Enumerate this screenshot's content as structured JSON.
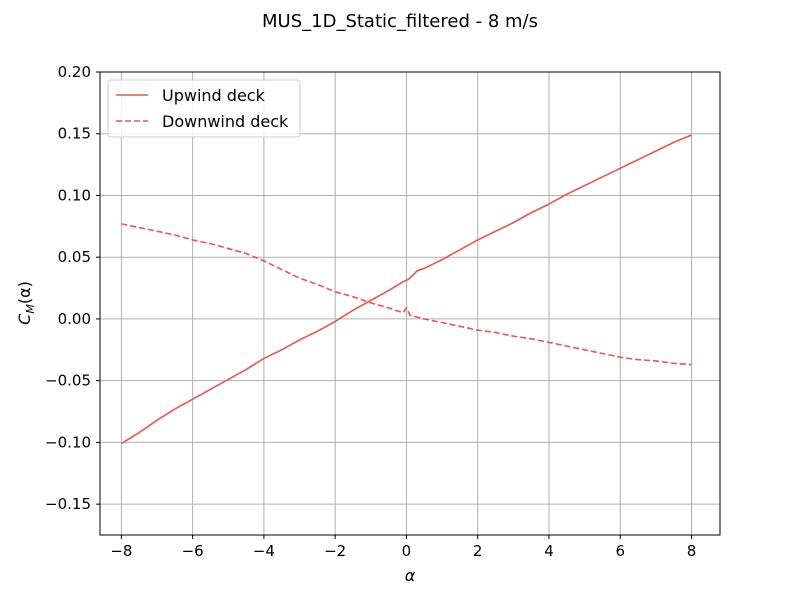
{
  "chart_data": {
    "type": "line",
    "title": "MUS_1D_Static_filtered - 8 m/s",
    "xlabel": "α",
    "ylabel_main": "C",
    "ylabel_sub": "M",
    "ylabel_tail": "(α)",
    "xlim": [
      -8.6,
      8.8
    ],
    "ylim": [
      -0.175,
      0.2
    ],
    "xticks": [
      -8,
      -6,
      -4,
      -2,
      0,
      2,
      4,
      6,
      8
    ],
    "xtick_labels": [
      "−8",
      "−6",
      "−4",
      "−2",
      "0",
      "2",
      "4",
      "6",
      "8"
    ],
    "yticks": [
      -0.15,
      -0.1,
      -0.05,
      0.0,
      0.05,
      0.1,
      0.15,
      0.2
    ],
    "ytick_labels": [
      "−0.15",
      "−0.10",
      "−0.05",
      "0.00",
      "0.05",
      "0.10",
      "0.15",
      "0.20"
    ],
    "grid": true,
    "legend_position": "top-left",
    "series": [
      {
        "name": "Upwind deck",
        "color": "#e8564e",
        "style": "solid",
        "points": [
          [
            -8,
            -0.101
          ],
          [
            -7.5,
            -0.092
          ],
          [
            -7,
            -0.082
          ],
          [
            -6.5,
            -0.073
          ],
          [
            -6,
            -0.065
          ],
          [
            -5.5,
            -0.057
          ],
          [
            -5,
            -0.049
          ],
          [
            -4.5,
            -0.041
          ],
          [
            -4,
            -0.032
          ],
          [
            -3.5,
            -0.025
          ],
          [
            -3,
            -0.017
          ],
          [
            -2.5,
            -0.01
          ],
          [
            -2,
            -0.002
          ],
          [
            -1.5,
            0.007
          ],
          [
            -1,
            0.015
          ],
          [
            -0.5,
            0.023
          ],
          [
            -0.1,
            0.03
          ],
          [
            0.05,
            0.032
          ],
          [
            0.2,
            0.036
          ],
          [
            0.3,
            0.039
          ],
          [
            0.5,
            0.041
          ],
          [
            1,
            0.048
          ],
          [
            1.5,
            0.056
          ],
          [
            2,
            0.064
          ],
          [
            2.5,
            0.071
          ],
          [
            3,
            0.078
          ],
          [
            3.5,
            0.086
          ],
          [
            4,
            0.093
          ],
          [
            4.5,
            0.101
          ],
          [
            5,
            0.108
          ],
          [
            5.5,
            0.115
          ],
          [
            6,
            0.122
          ],
          [
            6.5,
            0.129
          ],
          [
            7,
            0.136
          ],
          [
            7.5,
            0.143
          ],
          [
            8,
            0.149
          ]
        ]
      },
      {
        "name": "Downwind deck",
        "color": "#e8564e",
        "style": "dashed",
        "points": [
          [
            -8,
            0.077
          ],
          [
            -7.5,
            0.074
          ],
          [
            -7,
            0.071
          ],
          [
            -6.5,
            0.068
          ],
          [
            -6,
            0.064
          ],
          [
            -5.5,
            0.061
          ],
          [
            -5,
            0.057
          ],
          [
            -4.5,
            0.053
          ],
          [
            -4,
            0.047
          ],
          [
            -3.5,
            0.04
          ],
          [
            -3,
            0.033
          ],
          [
            -2.5,
            0.028
          ],
          [
            -2,
            0.022
          ],
          [
            -1.5,
            0.018
          ],
          [
            -1,
            0.013
          ],
          [
            -0.5,
            0.009
          ],
          [
            -0.1,
            0.005
          ],
          [
            0,
            0.009
          ],
          [
            0.1,
            0.003
          ],
          [
            0.5,
            0.0
          ],
          [
            1,
            -0.003
          ],
          [
            1.5,
            -0.006
          ],
          [
            2,
            -0.009
          ],
          [
            2.5,
            -0.011
          ],
          [
            3,
            -0.014
          ],
          [
            3.5,
            -0.016
          ],
          [
            4,
            -0.019
          ],
          [
            4.5,
            -0.022
          ],
          [
            5,
            -0.025
          ],
          [
            5.5,
            -0.028
          ],
          [
            6,
            -0.031
          ],
          [
            6.5,
            -0.033
          ],
          [
            7,
            -0.034
          ],
          [
            7.5,
            -0.036
          ],
          [
            8,
            -0.037
          ]
        ]
      }
    ]
  }
}
